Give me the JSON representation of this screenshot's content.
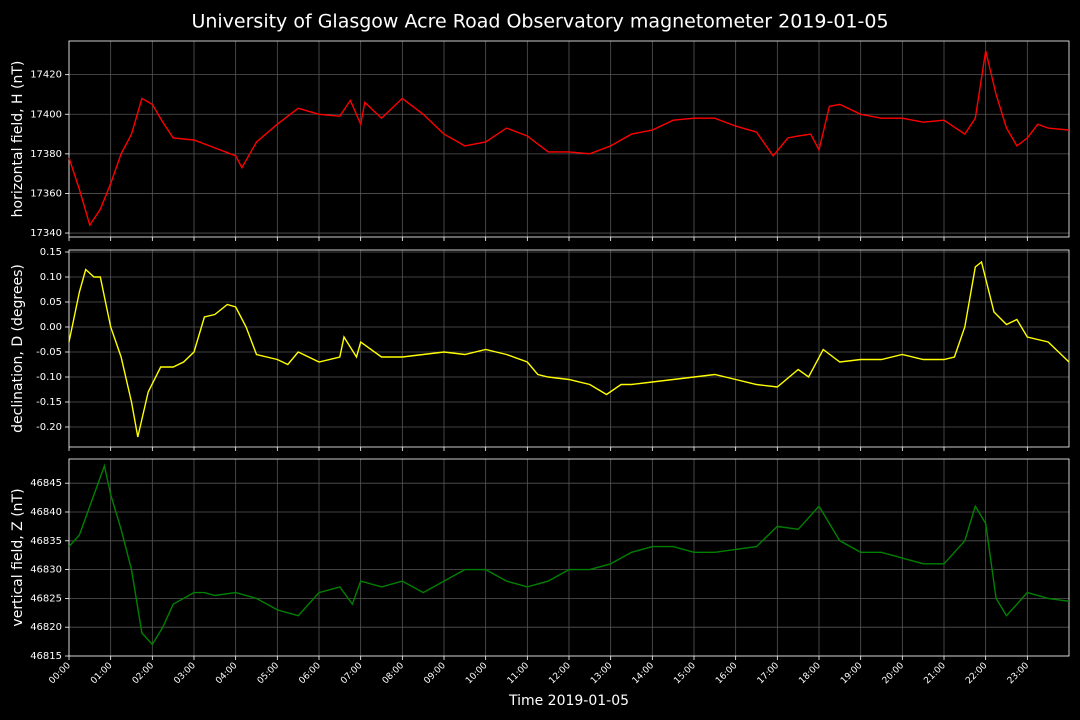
{
  "title": "University of Glasgow Acre Road Observatory magnetometer 2019-01-05",
  "chart_data": [
    {
      "type": "line",
      "ylabel": "horizontal field, H (nT)",
      "color": "#ff0000",
      "grid": true,
      "ylim": [
        17338,
        17437
      ],
      "yticks": [
        17340,
        17360,
        17380,
        17400,
        17420
      ],
      "x": [
        0,
        0.25,
        0.5,
        0.75,
        1,
        1.25,
        1.5,
        1.75,
        2,
        2.25,
        2.5,
        3,
        3.5,
        4,
        4.15,
        4.5,
        5,
        5.5,
        6,
        6.5,
        6.75,
        7,
        7.1,
        7.5,
        8,
        8.5,
        9,
        9.5,
        10,
        10.5,
        11,
        11.5,
        12,
        12.5,
        13,
        13.5,
        14,
        14.5,
        15,
        15.5,
        16,
        16.5,
        16.9,
        17.25,
        17.5,
        17.8,
        18,
        18.25,
        18.5,
        19,
        19.5,
        20,
        20.5,
        21,
        21.5,
        21.75,
        22,
        22.25,
        22.5,
        22.75,
        23,
        23.25,
        23.5,
        24
      ],
      "values": [
        17378,
        17362,
        17344,
        17352,
        17365,
        17380,
        17390,
        17408,
        17405,
        17396,
        17388,
        17387,
        17383,
        17379,
        17373,
        17386,
        17395,
        17403,
        17400,
        17399,
        17407,
        17395,
        17406,
        17398,
        17408,
        17400,
        17390,
        17384,
        17386,
        17393,
        17389,
        17381,
        17381,
        17380,
        17384,
        17390,
        17392,
        17397,
        17398,
        17398,
        17394,
        17391,
        17379,
        17388,
        17389,
        17390,
        17382,
        17404,
        17405,
        17400,
        17398,
        17398,
        17396,
        17397,
        17390,
        17398,
        17432,
        17410,
        17393,
        17384,
        17388,
        17395,
        17393,
        17392
      ]
    },
    {
      "type": "line",
      "ylabel": "declination, D (degrees)",
      "color": "#ffff00",
      "grid": true,
      "ylim": [
        -0.24,
        0.154
      ],
      "yticks": [
        0.15,
        {
          "value": 0.1,
          "label": "0.10"
        },
        0.05,
        {
          "value": 0,
          "label": "0.00"
        },
        -0.05,
        {
          "value": -0.1,
          "label": "-0.10"
        },
        -0.15,
        {
          "value": -0.2,
          "label": "-0.20"
        }
      ],
      "x": [
        0,
        0.25,
        0.4,
        0.6,
        0.75,
        1,
        1.25,
        1.5,
        1.65,
        1.9,
        2.2,
        2.5,
        2.75,
        3,
        3.25,
        3.5,
        3.8,
        4,
        4.25,
        4.5,
        5,
        5.25,
        5.5,
        6,
        6.5,
        6.6,
        6.9,
        7,
        7.5,
        8,
        8.5,
        9,
        9.5,
        10,
        10.5,
        11,
        11.25,
        11.5,
        12,
        12.5,
        12.9,
        13.25,
        13.5,
        14,
        14.5,
        15,
        15.5,
        16,
        16.5,
        17,
        17.5,
        17.75,
        18.1,
        18.5,
        19,
        19.5,
        20,
        20.5,
        21,
        21.25,
        21.5,
        21.75,
        21.9,
        22.2,
        22.5,
        22.75,
        23,
        23.5,
        24
      ],
      "values": [
        -0.03,
        0.07,
        0.115,
        0.1,
        0.1,
        0.0,
        -0.06,
        -0.15,
        -0.22,
        -0.13,
        -0.08,
        -0.08,
        -0.07,
        -0.05,
        0.02,
        0.025,
        0.045,
        0.04,
        0.0,
        -0.055,
        -0.065,
        -0.075,
        -0.05,
        -0.07,
        -0.06,
        -0.02,
        -0.06,
        -0.03,
        -0.06,
        -0.06,
        -0.055,
        -0.05,
        -0.055,
        -0.045,
        -0.055,
        -0.07,
        -0.095,
        -0.1,
        -0.105,
        -0.115,
        -0.135,
        -0.115,
        -0.115,
        -0.11,
        -0.105,
        -0.1,
        -0.095,
        -0.105,
        -0.115,
        -0.12,
        -0.085,
        -0.1,
        -0.045,
        -0.07,
        -0.065,
        -0.065,
        -0.055,
        -0.065,
        -0.065,
        -0.06,
        0.0,
        0.12,
        0.13,
        0.03,
        0.005,
        0.015,
        -0.02,
        -0.03,
        -0.07
      ]
    },
    {
      "type": "line",
      "ylabel": "vertical field, Z (nT)",
      "xlabel": "Time 2019-01-05",
      "color": "#008000",
      "grid": true,
      "ylim": [
        46815,
        46849.2
      ],
      "yticks": [
        46815,
        46820,
        46825,
        46830,
        46835,
        46840,
        46845
      ],
      "xlim": [
        0,
        24
      ],
      "xticks": [
        {
          "value": 0,
          "label": "00:00"
        },
        {
          "value": 1,
          "label": "01:00"
        },
        {
          "value": 2,
          "label": "02:00"
        },
        {
          "value": 3,
          "label": "03:00"
        },
        {
          "value": 4,
          "label": "04:00"
        },
        {
          "value": 5,
          "label": "05:00"
        },
        {
          "value": 6,
          "label": "06:00"
        },
        {
          "value": 7,
          "label": "07:00"
        },
        {
          "value": 8,
          "label": "08:00"
        },
        {
          "value": 9,
          "label": "09:00"
        },
        {
          "value": 10,
          "label": "10:00"
        },
        {
          "value": 11,
          "label": "11:00"
        },
        {
          "value": 12,
          "label": "12:00"
        },
        {
          "value": 13,
          "label": "13:00"
        },
        {
          "value": 14,
          "label": "14:00"
        },
        {
          "value": 15,
          "label": "15:00"
        },
        {
          "value": 16,
          "label": "16:00"
        },
        {
          "value": 17,
          "label": "17:00"
        },
        {
          "value": 18,
          "label": "18:00"
        },
        {
          "value": 19,
          "label": "19:00"
        },
        {
          "value": 20,
          "label": "20:00"
        },
        {
          "value": 21,
          "label": "21:00"
        },
        {
          "value": 22,
          "label": "22:00"
        },
        {
          "value": 23,
          "label": "23:00"
        }
      ],
      "x": [
        0,
        0.25,
        0.5,
        0.85,
        1,
        1.25,
        1.5,
        1.75,
        2,
        2.25,
        2.5,
        3,
        3.25,
        3.5,
        4,
        4.5,
        5,
        5.5,
        6,
        6.5,
        6.8,
        7,
        7.5,
        8,
        8.5,
        9,
        9.5,
        10,
        10.5,
        11,
        11.5,
        12,
        12.5,
        13,
        13.5,
        14,
        14.5,
        15,
        15.5,
        16,
        16.5,
        17,
        17.5,
        18,
        18.5,
        19,
        19.5,
        20,
        20.5,
        21,
        21.5,
        21.75,
        22,
        22.25,
        22.5,
        23,
        23.5,
        24
      ],
      "values": [
        46834,
        46836,
        46841,
        46848,
        46843,
        46837,
        46830,
        46819,
        46817,
        46820,
        46824,
        46826,
        46826,
        46825.5,
        46826,
        46825,
        46823,
        46822,
        46826,
        46827,
        46824,
        46828,
        46827,
        46828,
        46826,
        46828,
        46830,
        46830,
        46828,
        46827,
        46828,
        46830,
        46830,
        46831,
        46833,
        46834,
        46834,
        46833,
        46833,
        46833.5,
        46834,
        46837.5,
        46837,
        46841,
        46835,
        46833,
        46833,
        46832,
        46831,
        46831,
        46835,
        46841,
        46838,
        46825,
        46822,
        46826,
        46825,
        46824.5
      ]
    }
  ]
}
